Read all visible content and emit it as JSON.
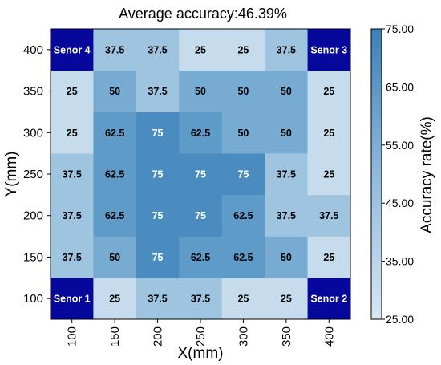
{
  "chart_data": {
    "type": "heatmap",
    "title": "Average accuracy:46.39%",
    "xlabel": "X(mm)",
    "ylabel": "Y(mm)",
    "colorbar_label": "Accuracy rate(%)",
    "x": [
      "100",
      "150",
      "200",
      "250",
      "300",
      "350",
      "400"
    ],
    "y": [
      "100",
      "150",
      "200",
      "250",
      "300",
      "350",
      "400"
    ],
    "values": [
      [
        "Senor 1",
        "25",
        "37.5",
        "37.5",
        "25",
        "25",
        "Senor 2"
      ],
      [
        "37.5",
        "50",
        "75",
        "62.5",
        "62.5",
        "50",
        "25"
      ],
      [
        "37.5",
        "62.5",
        "75",
        "75",
        "62.5",
        "37.5",
        "37.5"
      ],
      [
        "37.5",
        "62.5",
        "75",
        "75",
        "75",
        "37.5",
        "25"
      ],
      [
        "25",
        "62.5",
        "75",
        "62.5",
        "50",
        "50",
        "25"
      ],
      [
        "25",
        "50",
        "37.5",
        "50",
        "50",
        "50",
        "25"
      ],
      [
        "Senor 4",
        "37.5",
        "37.5",
        "25",
        "25",
        "37.5",
        "Senor 3"
      ]
    ],
    "colorbar_ticks": [
      "25.00",
      "35.00",
      "45.00",
      "55.00",
      "65.00",
      "75.00"
    ],
    "colorbar_range": [
      25,
      75
    ],
    "colors": {
      "25": "#c6dced",
      "37.5": "#9fc4e0",
      "50": "#78abd1",
      "62.5": "#5e9bc8",
      "75": "#4a8cc0",
      "sensor": "#05089a"
    }
  }
}
